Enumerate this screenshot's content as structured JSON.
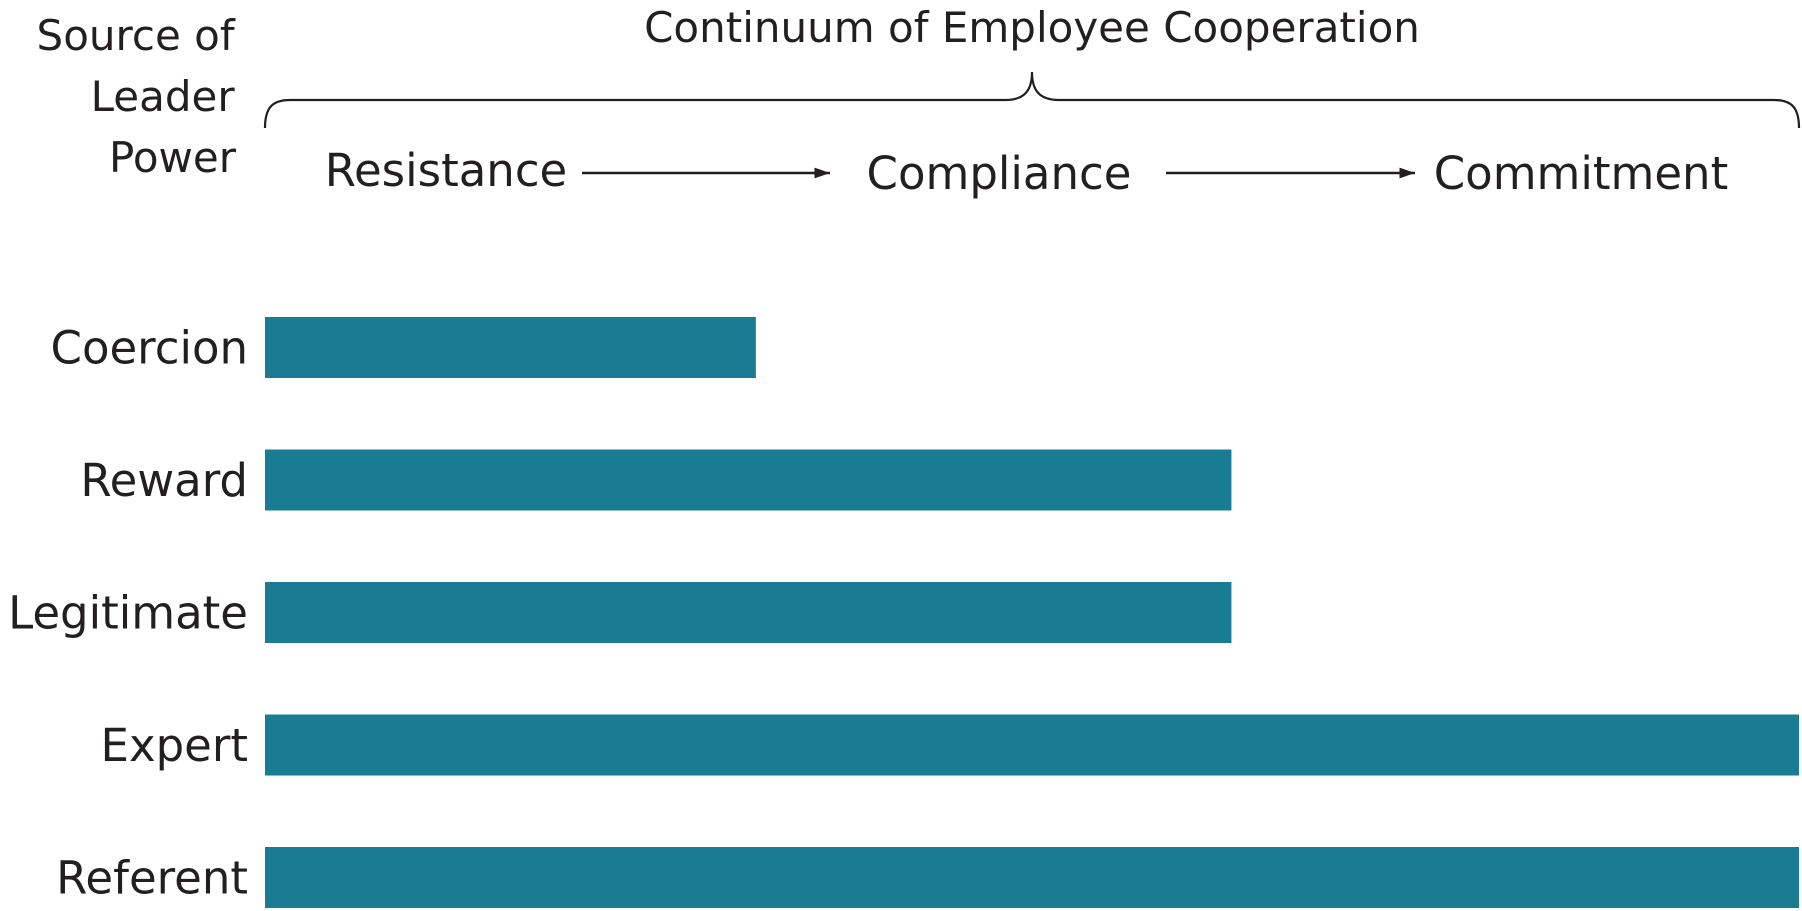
{
  "chart_data": {
    "type": "bar",
    "orientation": "horizontal",
    "title": "Continuum of Employee Cooperation",
    "ylabel": [
      "Source of",
      "Leader",
      "Power"
    ],
    "scale": {
      "stages": [
        "Resistance",
        "Compliance",
        "Commitment"
      ],
      "range": [
        0,
        1
      ]
    },
    "categories": [
      "Coercion",
      "Reward",
      "Legitimate",
      "Expert",
      "Referent"
    ],
    "values": [
      0.32,
      0.63,
      0.63,
      1.0,
      1.0
    ],
    "bar_color": "#1a7c92",
    "text_color": "#231f20",
    "grid": false,
    "legend": "none"
  }
}
